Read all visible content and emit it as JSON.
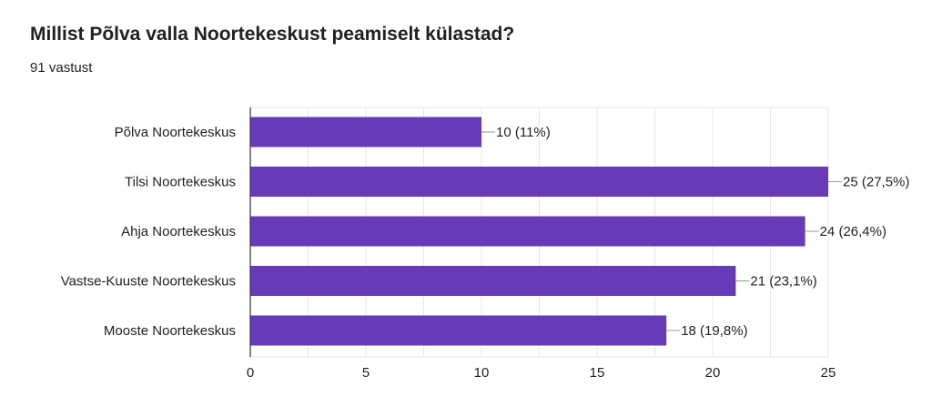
{
  "question": {
    "title": "Millist Põlva valla Noortekeskust peamiselt külastad?",
    "responses": "91 vastust"
  },
  "colors": {
    "bar": "#673ab7",
    "grid": "#e8e8e8",
    "axis": "#333333",
    "leader": "#999999"
  },
  "chart_data": {
    "type": "bar",
    "orientation": "horizontal",
    "categories": [
      "Põlva Noortekeskus",
      "Tilsi Noortekeskus",
      "Ahja Noortekeskus",
      "Vastse-Kuuste Noortekeskus",
      "Mooste Noortekeskus"
    ],
    "values": [
      10,
      25,
      24,
      21,
      18
    ],
    "data_labels": [
      "10 (11%)",
      "25 (27,5%)",
      "24 (26,4%)",
      "21 (23,1%)",
      "18 (19,8%)"
    ],
    "xlim": [
      0,
      25
    ],
    "xticks": [
      0,
      5,
      10,
      15,
      20,
      25
    ],
    "grid": true,
    "legend": "none"
  }
}
